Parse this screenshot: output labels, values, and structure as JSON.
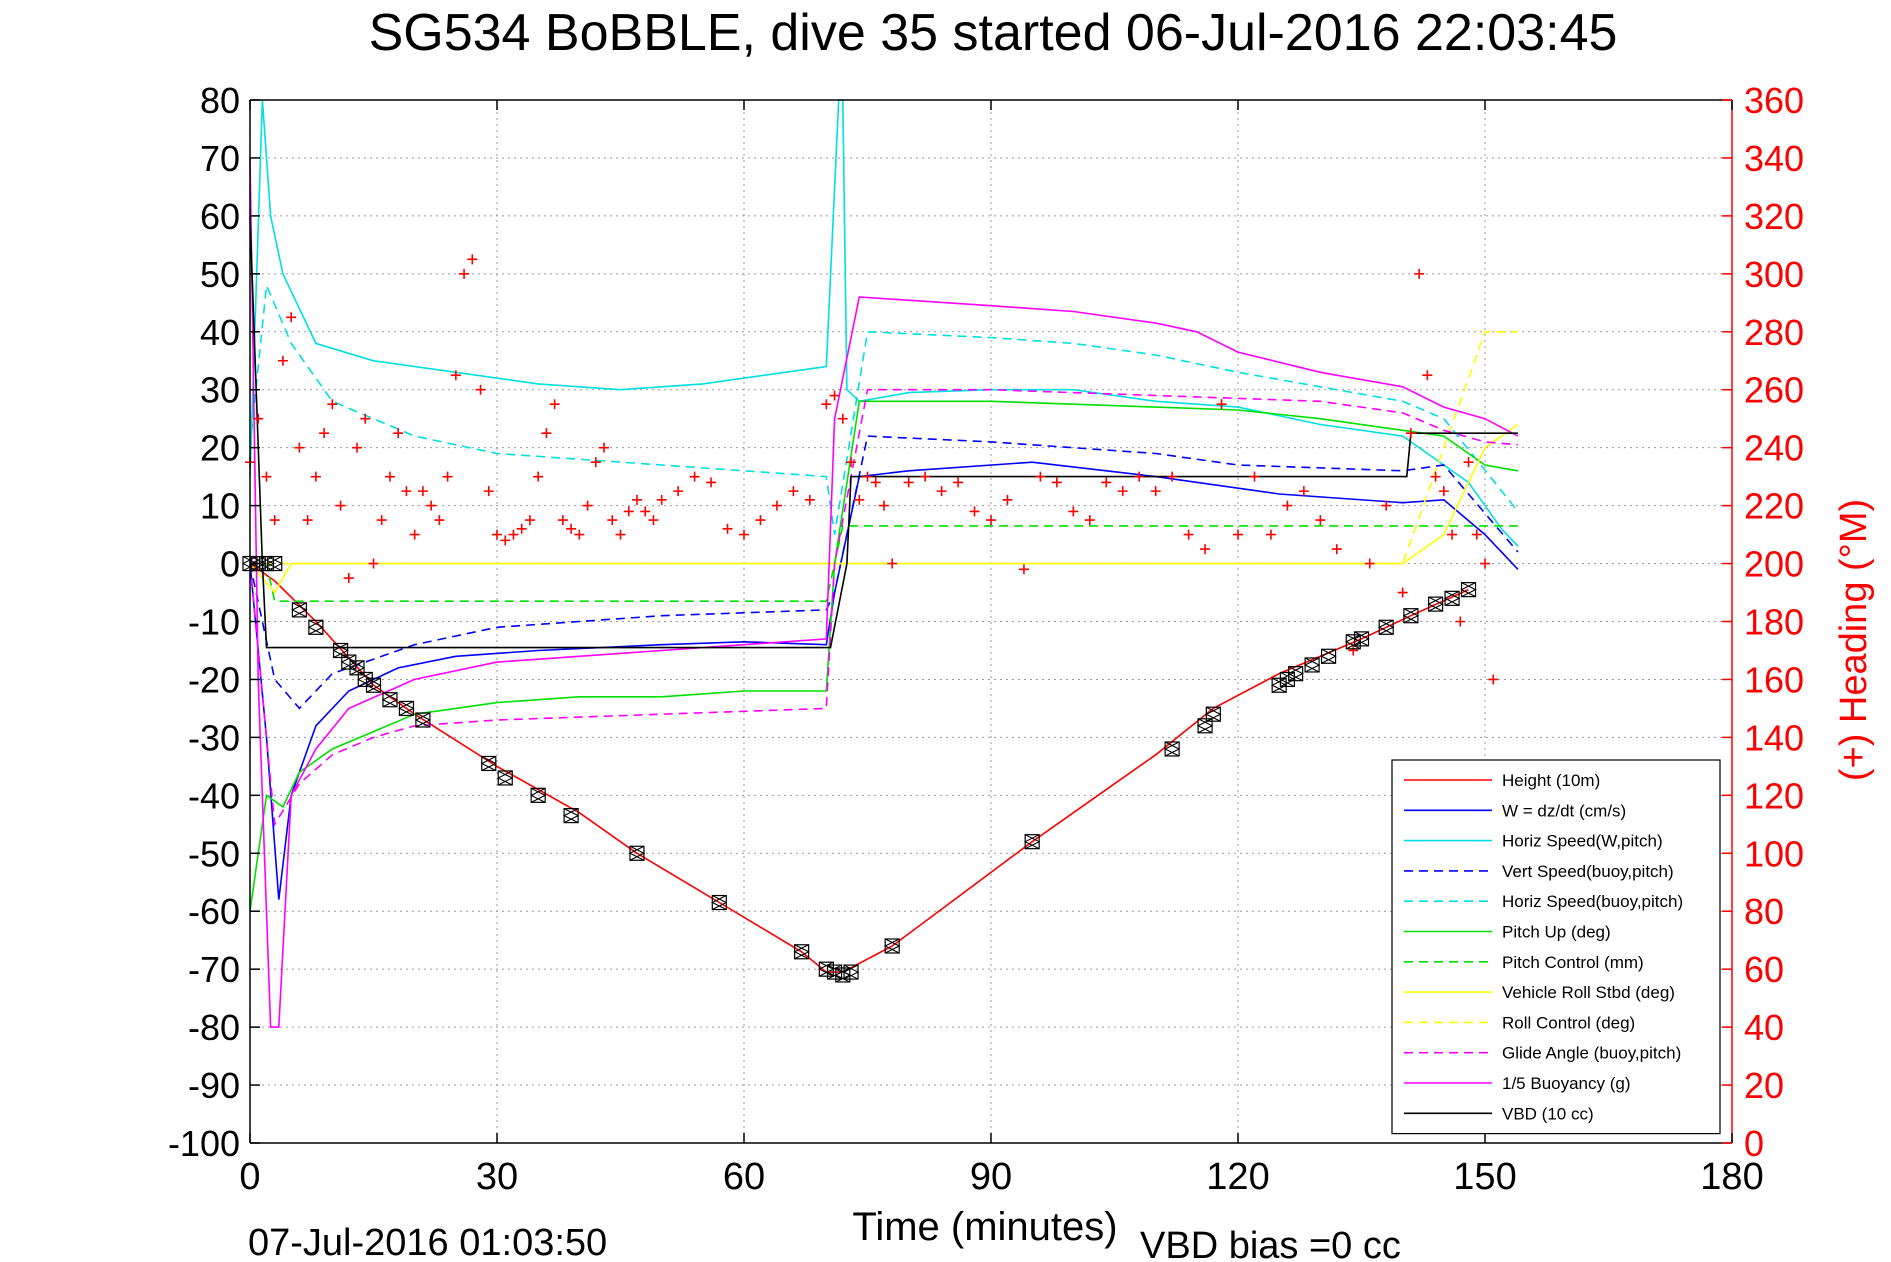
{
  "chart_data": {
    "type": "line",
    "title": "SG534 BoBBLE, dive 35 started 06-Jul-2016 22:03:45",
    "xlabel": "Time (minutes)",
    "ylabel_right": "(+) Heading (°M)",
    "footer_left": "07-Jul-2016 01:03:50",
    "footer_right": "VBD bias =0 cc",
    "xlim": [
      0,
      180
    ],
    "ylim": [
      -100,
      80
    ],
    "y2lim": [
      0,
      360
    ],
    "x_ticks": [
      0,
      30,
      60,
      90,
      120,
      150,
      180
    ],
    "x_tick_labels": [
      "0",
      "30",
      "60",
      "90",
      "120",
      "150",
      "180"
    ],
    "y_ticks": [
      80,
      70,
      60,
      50,
      40,
      30,
      20,
      10,
      0,
      -10,
      -20,
      -30,
      -40,
      -50,
      -60,
      -70,
      -80,
      -90,
      -100
    ],
    "y_tick_labels": [
      "80",
      "70",
      "60",
      "50",
      "40",
      "30",
      "20",
      "10",
      "0",
      "-10",
      "-20",
      "-30",
      "-40",
      "-50",
      "-60",
      "-70",
      "-80",
      "-90",
      "-100"
    ],
    "y2_ticks": [
      360,
      340,
      320,
      300,
      280,
      260,
      240,
      220,
      200,
      180,
      160,
      140,
      120,
      100,
      80,
      60,
      40,
      20,
      0
    ],
    "y2_tick_labels": [
      "360",
      "340",
      "320",
      "300",
      "280",
      "260",
      "240",
      "220",
      "200",
      "180",
      "160",
      "140",
      "120",
      "100",
      "80",
      "60",
      "40",
      "20",
      "0"
    ],
    "grid": true,
    "legend_position": "bottom-right",
    "colors": {
      "axis": "#000000",
      "grid": "#9a9a9a",
      "right_axis": "#ff0000"
    },
    "series": [
      {
        "name": "Height (10m)",
        "color": "#ff0000",
        "style": "solid",
        "x": [
          0,
          3,
          8,
          15,
          20,
          30,
          40,
          47,
          57,
          67,
          70,
          72,
          78,
          95,
          110,
          117,
          125,
          135,
          141,
          148
        ],
        "y": [
          0,
          -3,
          -10,
          -21,
          -26,
          -35,
          -43,
          -50,
          -58.5,
          -67,
          -70.5,
          -70.5,
          -66,
          -48,
          -33,
          -25,
          -19,
          -13,
          -9,
          -4.5
        ]
      },
      {
        "name": "W = dz/dt (cm/s)",
        "color": "#0000ff",
        "style": "solid",
        "x": [
          0,
          2,
          3.5,
          5,
          8,
          12,
          18,
          25,
          35,
          50,
          60,
          70,
          71,
          74,
          80,
          95,
          110,
          125,
          140,
          145,
          150,
          154
        ],
        "y": [
          0,
          -30,
          -58,
          -40,
          -28,
          -22,
          -18,
          -16,
          -15,
          -14,
          -13.5,
          -14,
          -5,
          15,
          16,
          17.5,
          15,
          12,
          10.5,
          11,
          5,
          -1
        ]
      },
      {
        "name": "Horiz Speed(W,pitch)",
        "color": "#00e0e0",
        "style": "solid",
        "x": [
          0,
          1.5,
          2.5,
          4,
          8,
          15,
          25,
          35,
          45,
          55,
          60,
          65,
          70,
          71.5,
          72,
          72.5,
          74,
          80,
          90,
          100,
          110,
          120,
          130,
          140,
          148,
          152,
          154
        ],
        "y": [
          15,
          80,
          60,
          50,
          38,
          35,
          33,
          31,
          30,
          31,
          32,
          33,
          34,
          80,
          80,
          30,
          28,
          29.5,
          30,
          30,
          28,
          27,
          24,
          22,
          14,
          6,
          3
        ]
      },
      {
        "name": "Vert Speed(buoy,pitch)",
        "color": "#0000ff",
        "style": "dashed",
        "x": [
          0,
          3,
          6,
          10,
          20,
          30,
          50,
          70,
          71,
          75,
          90,
          100,
          110,
          120,
          140,
          145,
          154
        ],
        "y": [
          0,
          -20,
          -25,
          -19,
          -14,
          -11,
          -9,
          -8,
          -5,
          22,
          21,
          20,
          19,
          17,
          16,
          17,
          2
        ]
      },
      {
        "name": "Horiz Speed(buoy,pitch)",
        "color": "#00e0e0",
        "style": "dashed",
        "x": [
          0,
          2,
          5,
          10,
          20,
          30,
          50,
          70,
          71,
          75,
          90,
          100,
          110,
          120,
          140,
          145,
          154
        ],
        "y": [
          20,
          48,
          38,
          28,
          22,
          19,
          17,
          15,
          5,
          40,
          39,
          38,
          36,
          33,
          28,
          25,
          9
        ]
      },
      {
        "name": "Pitch Up (deg)",
        "color": "#00e000",
        "style": "solid",
        "x": [
          0,
          2,
          4,
          6,
          10,
          15,
          20,
          25,
          30,
          40,
          50,
          60,
          70,
          71,
          74,
          80,
          90,
          100,
          110,
          120,
          130,
          140,
          145,
          150,
          154
        ],
        "y": [
          -60,
          -40,
          -42,
          -36,
          -32,
          -29,
          -26,
          -25,
          -24,
          -23,
          -23,
          -22,
          -22,
          0,
          28,
          28,
          28,
          27.5,
          27,
          26.5,
          25,
          23,
          22,
          17,
          16
        ]
      },
      {
        "name": "Pitch Control (mm)",
        "color": "#00e000",
        "style": "dashed",
        "x": [
          0,
          2,
          3,
          20,
          50,
          70,
          71,
          72,
          100,
          140,
          145,
          154
        ],
        "y": [
          0,
          0,
          -6.5,
          -6.5,
          -6.5,
          -6.5,
          0,
          6.5,
          6.5,
          6.5,
          6.5,
          6.5
        ]
      },
      {
        "name": "Vehicle Roll Stbd (deg)",
        "color": "#ffff00",
        "style": "solid",
        "x": [
          0,
          3,
          5,
          10,
          20,
          30,
          50,
          60,
          70,
          75,
          90,
          110,
          120,
          130,
          140,
          145,
          150,
          154
        ],
        "y": [
          0,
          -5,
          0,
          0,
          0,
          0,
          0,
          0,
          0,
          0,
          0,
          0,
          0,
          0,
          0,
          5,
          20,
          24
        ]
      },
      {
        "name": "Roll Control (deg)",
        "color": "#ffff00",
        "style": "dashed",
        "x": [
          0,
          10,
          20,
          40,
          60,
          80,
          100,
          120,
          140,
          150,
          154
        ],
        "y": [
          0,
          0,
          0,
          0,
          0,
          0,
          0,
          0,
          0,
          40,
          40
        ]
      },
      {
        "name": "Glide Angle (buoy,pitch)",
        "color": "#ff00ff",
        "style": "dashed",
        "x": [
          0,
          3,
          6,
          10,
          15,
          20,
          30,
          50,
          70,
          71,
          75,
          90,
          110,
          130,
          140,
          145,
          150,
          154
        ],
        "y": [
          0,
          -45,
          -38,
          -33,
          -30,
          -28,
          -27,
          -26,
          -25,
          0,
          30,
          30,
          29,
          28,
          26,
          23,
          21,
          20.5
        ]
      },
      {
        "name": "1/5 Buoyancy (g)",
        "color": "#ff00ff",
        "style": "solid",
        "x": [
          0,
          1,
          2.5,
          3.5,
          5,
          8,
          12,
          20,
          30,
          50,
          70,
          71,
          74,
          90,
          100,
          110,
          115,
          120,
          130,
          140,
          145,
          150,
          154
        ],
        "y": [
          70,
          -20,
          -80,
          -80,
          -40,
          -32,
          -25,
          -20,
          -17,
          -15,
          -13,
          25,
          46,
          44.5,
          43.5,
          41.5,
          40,
          36.5,
          33,
          30.5,
          27,
          25,
          22
        ]
      },
      {
        "name": "VBD (10 cc)",
        "color": "#000000",
        "style": "solid",
        "x": [
          0,
          1.5,
          2,
          70,
          70.5,
          72.5,
          73,
          140,
          140.5,
          141,
          154
        ],
        "y": [
          60,
          0,
          -14.5,
          -14.5,
          -14.5,
          0,
          15,
          15,
          15,
          22.5,
          22.5
        ]
      }
    ],
    "heading": {
      "color": "#ff0000",
      "marker": "+",
      "x": [
        0,
        1,
        2,
        3,
        4,
        5,
        6,
        7,
        8,
        9,
        10,
        11,
        12,
        13,
        14,
        15,
        16,
        17,
        18,
        19,
        20,
        21,
        22,
        23,
        24,
        25,
        26,
        27,
        28,
        29,
        30,
        31,
        32,
        33,
        34,
        35,
        36,
        37,
        38,
        39,
        40,
        41,
        42,
        43,
        44,
        45,
        46,
        47,
        48,
        49,
        50,
        52,
        54,
        56,
        58,
        60,
        62,
        64,
        66,
        68,
        70,
        71,
        72,
        73,
        74,
        75,
        76,
        77,
        78,
        80,
        82,
        84,
        86,
        88,
        90,
        92,
        94,
        96,
        98,
        100,
        102,
        104,
        106,
        108,
        110,
        112,
        114,
        116,
        118,
        120,
        122,
        124,
        126,
        128,
        130,
        132,
        134,
        136,
        138,
        140,
        141,
        142,
        143,
        144,
        145,
        146,
        147,
        148,
        149,
        150,
        151,
        152
      ],
      "y": [
        235,
        250,
        230,
        215,
        270,
        285,
        240,
        215,
        230,
        245,
        255,
        220,
        195,
        240,
        250,
        200,
        215,
        230,
        245,
        225,
        210,
        225,
        220,
        215,
        230,
        265,
        300,
        305,
        260,
        225,
        210,
        208,
        210,
        212,
        215,
        230,
        245,
        255,
        215,
        212,
        210,
        220,
        235,
        240,
        215,
        210,
        218,
        222,
        218,
        215,
        222,
        225,
        230,
        228,
        212,
        210,
        215,
        220,
        225,
        222,
        255,
        258,
        250,
        235,
        222,
        230,
        228,
        220,
        200,
        228,
        230,
        225,
        228,
        218,
        215,
        222,
        198,
        230,
        228,
        218,
        215,
        228,
        225,
        230,
        225,
        230,
        210,
        205,
        255,
        210,
        230,
        210,
        220,
        225,
        215,
        205,
        170,
        200,
        220,
        190,
        245,
        300,
        265,
        230,
        225,
        210,
        180,
        235,
        210,
        200,
        160,
        120
      ]
    },
    "markers": {
      "color": "#000000",
      "x": [
        0,
        1,
        2,
        3,
        6,
        8,
        11,
        12,
        13,
        14,
        15,
        17,
        19,
        21,
        29,
        31,
        35,
        39,
        47,
        57,
        67,
        70,
        71,
        72,
        73,
        78,
        95,
        112,
        116,
        117,
        125,
        126,
        127,
        129,
        131,
        134,
        135,
        138,
        141,
        144,
        146,
        148
      ],
      "y": [
        0,
        0,
        0,
        0,
        -8,
        -11,
        -15,
        -17,
        -18,
        -20,
        -21,
        -23.5,
        -25,
        -27,
        -34.5,
        -37,
        -40,
        -43.5,
        -50,
        -58.5,
        -67,
        -70,
        -70.5,
        -71,
        -70.5,
        -66,
        -48,
        -32,
        -28,
        -26,
        -21,
        -20,
        -19,
        -17.5,
        -16,
        -13.5,
        -13,
        -11,
        -9,
        -7,
        -6,
        -4.5
      ]
    },
    "legend": [
      {
        "label": "Height (10m)",
        "color": "#ff0000",
        "style": "solid"
      },
      {
        "label": "W = dz/dt (cm/s)",
        "color": "#0000ff",
        "style": "solid"
      },
      {
        "label": "Horiz Speed(W,pitch)",
        "color": "#00e0e0",
        "style": "solid"
      },
      {
        "label": "Vert Speed(buoy,pitch)",
        "color": "#0000ff",
        "style": "dashed"
      },
      {
        "label": "Horiz Speed(buoy,pitch)",
        "color": "#00e0e0",
        "style": "dashed"
      },
      {
        "label": "Pitch Up (deg)",
        "color": "#00e000",
        "style": "solid"
      },
      {
        "label": "Pitch Control (mm)",
        "color": "#00e000",
        "style": "dashed"
      },
      {
        "label": "Vehicle Roll Stbd (deg)",
        "color": "#ffff00",
        "style": "solid"
      },
      {
        "label": "Roll Control (deg)",
        "color": "#ffff00",
        "style": "dashed"
      },
      {
        "label": "Glide Angle (buoy,pitch)",
        "color": "#ff00ff",
        "style": "dashed"
      },
      {
        "label": "1/5 Buoyancy (g)",
        "color": "#ff00ff",
        "style": "solid"
      },
      {
        "label": "VBD (10 cc)",
        "color": "#000000",
        "style": "solid"
      }
    ]
  }
}
